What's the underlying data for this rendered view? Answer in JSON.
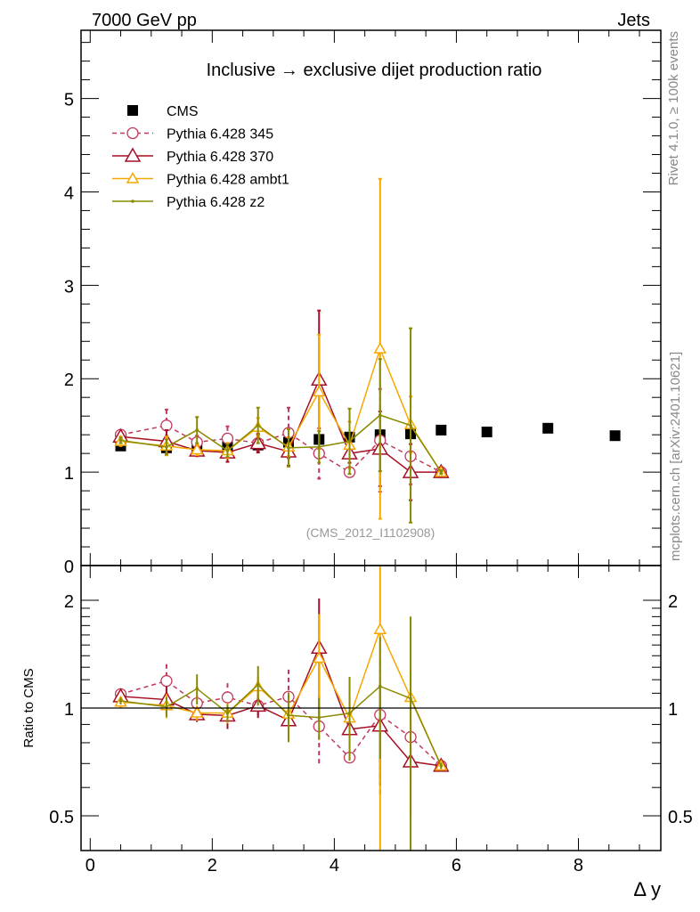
{
  "header": {
    "left": "7000 GeV pp",
    "right": "Jets"
  },
  "side_labels": {
    "rivet": "Rivet 4.1.0, ≥ 100k events",
    "mcplots": "mcplots.cern.ch [arXiv:2401.10621]"
  },
  "chart_data": [
    {
      "type": "scatter",
      "title": "Inclusive → exclusive dijet production ratio",
      "annotation": "(CMS_2012_I1102908)",
      "xlabel": "Δ y",
      "ylabel": "",
      "xlim": [
        -0.15,
        9.35
      ],
      "ylim": [
        0,
        5.73
      ],
      "xticks": [
        0,
        2,
        4,
        6,
        8
      ],
      "yticks": [
        0,
        1,
        2,
        3,
        4,
        5
      ],
      "legend_position": "top-left",
      "series": [
        {
          "name": "CMS",
          "color": "#000000",
          "marker": "square",
          "line": "none",
          "x": [
            0.5,
            1.25,
            1.75,
            2.25,
            2.75,
            3.25,
            3.75,
            4.25,
            4.75,
            5.25,
            5.75,
            6.5,
            7.5,
            8.6
          ],
          "y": [
            1.28,
            1.26,
            1.28,
            1.27,
            1.29,
            1.32,
            1.35,
            1.375,
            1.4,
            1.41,
            1.45,
            1.43,
            1.47,
            1.39
          ],
          "err": [
            0.02,
            0.02,
            0.02,
            0.02,
            0.02,
            0.02,
            0.02,
            0.02,
            0.02,
            0.02,
            0.02,
            0.02,
            0.02,
            0.02
          ]
        },
        {
          "name": "Pythia 6.428 345",
          "color": "#c0395a",
          "marker": "circle",
          "line": "dashed",
          "x": [
            0.5,
            1.25,
            1.75,
            2.25,
            2.75,
            3.25,
            3.75,
            4.25,
            4.75,
            5.25,
            5.75
          ],
          "y": [
            1.4,
            1.5,
            1.32,
            1.36,
            1.31,
            1.42,
            1.2,
            1.0,
            1.34,
            1.17,
            1.0
          ],
          "err": [
            0.05,
            0.17,
            0.07,
            0.13,
            0.08,
            0.27,
            0.27,
            0.05,
            0.55,
            0.3,
            0.02
          ]
        },
        {
          "name": "Pythia 6.428 370",
          "color": "#a50f25",
          "marker": "triangle",
          "line": "solid",
          "x": [
            0.5,
            1.25,
            1.75,
            2.25,
            2.75,
            3.25,
            3.75,
            4.25,
            4.75,
            5.25,
            5.75
          ],
          "y": [
            1.38,
            1.33,
            1.23,
            1.21,
            1.31,
            1.22,
            1.99,
            1.2,
            1.25,
            1.0,
            1.0
          ],
          "err": [
            0.05,
            0.12,
            0.06,
            0.1,
            0.1,
            0.15,
            0.74,
            0.1,
            0.4,
            0.3,
            0.02
          ]
        },
        {
          "name": "Pythia 6.428 ambt1",
          "color": "#f5a800",
          "marker": "triangle",
          "line": "solid",
          "x": [
            0.5,
            1.25,
            1.75,
            2.25,
            2.75,
            3.25,
            3.75,
            4.25,
            4.75,
            5.25,
            5.75
          ],
          "y": [
            1.33,
            1.28,
            1.24,
            1.23,
            1.48,
            1.27,
            1.86,
            1.29,
            2.32,
            1.51,
            1.0
          ],
          "err": [
            0.05,
            0.1,
            0.06,
            0.08,
            0.1,
            0.1,
            0.61,
            0.25,
            1.82,
            0.3,
            0.02
          ]
        },
        {
          "name": "Pythia 6.428 z2",
          "color": "#8a8a00",
          "marker": "dot",
          "line": "solid",
          "x": [
            0.5,
            1.25,
            1.75,
            2.25,
            2.75,
            3.25,
            3.75,
            4.25,
            4.75,
            5.25,
            5.75
          ],
          "y": [
            1.34,
            1.27,
            1.45,
            1.23,
            1.5,
            1.26,
            1.27,
            1.33,
            1.61,
            1.5,
            1.0
          ],
          "err": [
            0.03,
            0.08,
            0.14,
            0.07,
            0.19,
            0.2,
            0.17,
            0.35,
            0.6,
            1.04,
            0.02
          ]
        }
      ]
    },
    {
      "type": "scatter",
      "title": "",
      "xlabel": "Δ y",
      "ylabel": "Ratio to CMS",
      "yscale": "log",
      "ylim": [
        0.4,
        2.5
      ],
      "yticks": [
        0.5,
        1,
        2
      ],
      "ytick_labels": [
        "0.5",
        "1",
        "2"
      ],
      "reference_line": 1,
      "note": "ratio of each Pythia series to CMS"
    }
  ]
}
